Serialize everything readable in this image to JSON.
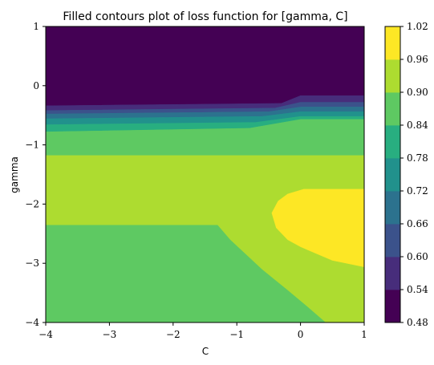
{
  "chart_data": {
    "type": "contourf",
    "title": "Filled contours plot of loss function for [gamma, C]",
    "xlabel": "C",
    "ylabel": "gamma",
    "xlim": [
      -4,
      1
    ],
    "ylim": [
      -4,
      1
    ],
    "x_ticks": [
      "−4",
      "−3",
      "−2",
      "−1",
      "0",
      "1"
    ],
    "y_ticks": [
      "1",
      "0",
      "−1",
      "−2",
      "−3",
      "−4"
    ],
    "colorbar": {
      "levels": [
        0.48,
        0.54,
        0.6,
        0.66,
        0.72,
        0.78,
        0.84,
        0.9,
        0.96,
        1.02
      ],
      "tick_labels": [
        "0.48",
        "0.54",
        "0.60",
        "0.66",
        "0.72",
        "0.78",
        "0.84",
        "0.90",
        "0.96",
        "1.02"
      ],
      "colors": [
        "#440154",
        "#472d7b",
        "#3b528b",
        "#2c728e",
        "#21918c",
        "#28ae80",
        "#5ec962",
        "#addc30",
        "#fde725"
      ]
    },
    "regions": [
      {
        "level_range": [
          0.48,
          0.54
        ],
        "polygon": [
          [
            -4,
            1
          ],
          [
            1,
            1
          ],
          [
            1,
            -0.17
          ],
          [
            0,
            -0.17
          ],
          [
            -0.3,
            -0.3
          ],
          [
            -4,
            -0.34
          ]
        ]
      },
      {
        "level_range": [
          0.54,
          0.6
        ],
        "polygon": [
          [
            -4,
            -0.34
          ],
          [
            -0.3,
            -0.3
          ],
          [
            0,
            -0.17
          ],
          [
            1,
            -0.17
          ],
          [
            1,
            -0.28
          ],
          [
            0,
            -0.28
          ],
          [
            -0.4,
            -0.38
          ],
          [
            -4,
            -0.42
          ]
        ]
      },
      {
        "level_range": [
          0.6,
          0.66
        ],
        "polygon": [
          [
            -4,
            -0.42
          ],
          [
            -0.4,
            -0.38
          ],
          [
            0,
            -0.28
          ],
          [
            1,
            -0.28
          ],
          [
            1,
            -0.36
          ],
          [
            0,
            -0.36
          ],
          [
            -0.5,
            -0.44
          ],
          [
            -4,
            -0.48
          ]
        ]
      },
      {
        "level_range": [
          0.66,
          0.72
        ],
        "polygon": [
          [
            -4,
            -0.48
          ],
          [
            -0.5,
            -0.44
          ],
          [
            0,
            -0.36
          ],
          [
            1,
            -0.36
          ],
          [
            1,
            -0.44
          ],
          [
            0,
            -0.44
          ],
          [
            -0.6,
            -0.52
          ],
          [
            -4,
            -0.56
          ]
        ]
      },
      {
        "level_range": [
          0.72,
          0.78
        ],
        "polygon": [
          [
            -4,
            -0.56
          ],
          [
            -0.6,
            -0.52
          ],
          [
            0,
            -0.44
          ],
          [
            1,
            -0.44
          ],
          [
            1,
            -0.52
          ],
          [
            0,
            -0.52
          ],
          [
            -0.7,
            -0.62
          ],
          [
            -4,
            -0.66
          ]
        ]
      },
      {
        "level_range": [
          0.78,
          0.84
        ],
        "polygon": [
          [
            -4,
            -0.66
          ],
          [
            -0.7,
            -0.62
          ],
          [
            0,
            -0.52
          ],
          [
            1,
            -0.52
          ],
          [
            1,
            -0.57
          ],
          [
            0,
            -0.57
          ],
          [
            -0.8,
            -0.72
          ],
          [
            -4,
            -0.78
          ]
        ]
      },
      {
        "level_range": [
          0.84,
          0.9
        ],
        "polygon": [
          [
            -4,
            -0.78
          ],
          [
            -0.8,
            -0.72
          ],
          [
            0,
            -0.57
          ],
          [
            1,
            -0.57
          ],
          [
            1,
            -1.18
          ],
          [
            -4,
            -1.18
          ]
        ]
      },
      {
        "level_range": [
          0.84,
          0.9
        ],
        "polygon": [
          [
            -4,
            -2.35
          ],
          [
            -1.3,
            -2.35
          ],
          [
            -1.1,
            -2.6
          ],
          [
            -0.6,
            -3.1
          ],
          [
            -0.2,
            -3.45
          ],
          [
            0.1,
            -3.72
          ],
          [
            0.4,
            -4
          ],
          [
            -4,
            -4
          ]
        ]
      },
      {
        "level_range": [
          0.9,
          0.96
        ],
        "polygon": [
          [
            -4,
            -1.18
          ],
          [
            1,
            -1.18
          ],
          [
            1,
            -4
          ],
          [
            0.4,
            -4
          ],
          [
            0.1,
            -3.72
          ],
          [
            -0.2,
            -3.45
          ],
          [
            -0.6,
            -3.1
          ],
          [
            -1.1,
            -2.6
          ],
          [
            -1.3,
            -2.35
          ],
          [
            -4,
            -2.35
          ]
        ]
      },
      {
        "level_range": [
          0.96,
          1.02
        ],
        "polygon": [
          [
            1,
            -1.75
          ],
          [
            0.05,
            -1.75
          ],
          [
            -0.2,
            -1.83
          ],
          [
            -0.35,
            -1.95
          ],
          [
            -0.45,
            -2.15
          ],
          [
            -0.38,
            -2.4
          ],
          [
            -0.2,
            -2.6
          ],
          [
            0,
            -2.72
          ],
          [
            0.5,
            -2.95
          ],
          [
            1,
            -3.06
          ]
        ]
      }
    ]
  }
}
